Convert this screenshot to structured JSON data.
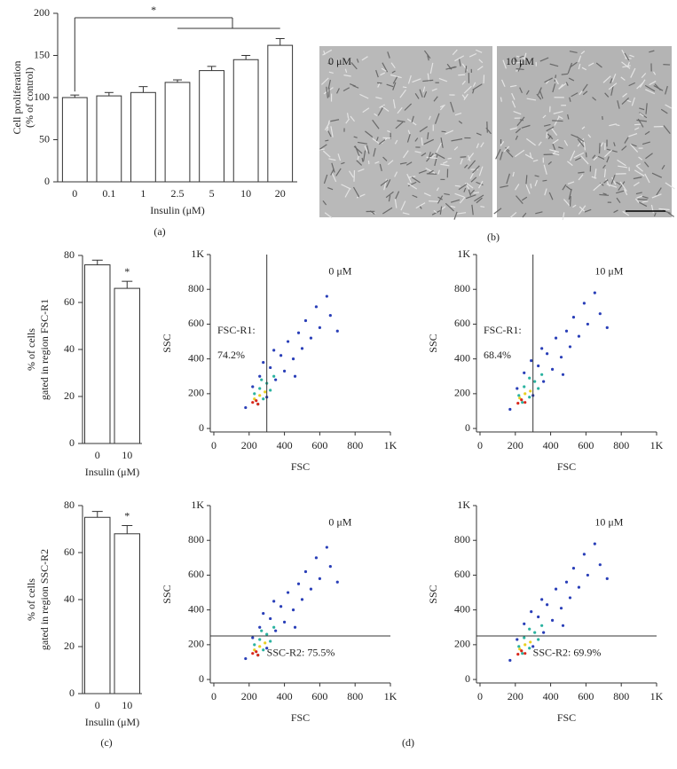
{
  "chart_data": [
    {
      "type": "bar",
      "panel_label": "(a)",
      "ylabel": [
        "Cell proliferation",
        "(% of control)"
      ],
      "xlabel": "Insulin (μM)",
      "categories": [
        "0",
        "0.1",
        "1",
        "2.5",
        "5",
        "10",
        "20"
      ],
      "values": [
        100,
        102,
        106,
        118,
        132,
        145,
        162
      ],
      "errors": [
        3,
        4,
        7,
        3,
        5,
        5,
        8
      ],
      "color": "#ffffff",
      "ylim": [
        0,
        200
      ],
      "yticks": [
        0,
        50,
        100,
        150,
        200
      ],
      "annotation": "*"
    },
    {
      "type": "bar",
      "ylabel": [
        "% of cells",
        "gated in region FSC-R1"
      ],
      "xlabel": "Insulin (μM)",
      "categories": [
        "0",
        "10"
      ],
      "values": [
        76,
        66
      ],
      "errors": [
        2,
        3
      ],
      "color": "#ffffff",
      "ylim": [
        0,
        80
      ],
      "yticks": [
        0,
        20,
        40,
        60,
        80
      ],
      "annotation": "*"
    },
    {
      "type": "bar",
      "panel_label": "(c)",
      "ylabel": [
        "% of cells",
        "gated in region SSC-R2"
      ],
      "xlabel": "Insulin (μM)",
      "categories": [
        "0",
        "10"
      ],
      "values": [
        75,
        68
      ],
      "errors": [
        2.5,
        3.5
      ],
      "color": "#ffffff",
      "ylim": [
        0,
        80
      ],
      "yticks": [
        0,
        20,
        40,
        60,
        80
      ],
      "annotation": "*"
    },
    {
      "type": "scatter",
      "xlabel": "FSC",
      "ylabel": "SSC",
      "annotation": "0 μM",
      "gate": {
        "axis": "x",
        "value": 300
      },
      "gate_label": [
        "FSC-R1:",
        "74.2%"
      ],
      "xlim": [
        -20,
        1000
      ],
      "ylim": [
        -20,
        1000
      ],
      "xticks": [
        0,
        200,
        400,
        600,
        800,
        {
          "value": 1000,
          "label": "1K"
        }
      ],
      "yticks": [
        0,
        200,
        400,
        600,
        800,
        {
          "value": 1000,
          "label": "1K"
        }
      ],
      "series": [
        {
          "color": "#2a3fb8",
          "x": [
            180,
            220,
            260,
            300,
            320,
            350,
            380,
            400,
            420,
            450,
            480,
            500,
            520,
            550,
            580,
            600,
            640,
            660,
            700,
            280,
            340,
            460
          ],
          "values": [
            120,
            240,
            300,
            180,
            350,
            280,
            420,
            330,
            500,
            400,
            550,
            460,
            620,
            520,
            700,
            580,
            760,
            650,
            560,
            380,
            450,
            300
          ]
        },
        {
          "color": "#2bb3a0",
          "x": [
            230,
            260,
            280,
            300,
            320,
            250,
            340,
            270
          ],
          "values": [
            200,
            230,
            170,
            260,
            220,
            140,
            300,
            280
          ]
        },
        {
          "color": "#e8d020",
          "x": [
            230,
            260,
            290
          ],
          "values": [
            170,
            190,
            210
          ]
        },
        {
          "color": "#d8281c",
          "x": [
            220,
            240,
            250
          ],
          "values": [
            150,
            160,
            140
          ]
        }
      ]
    },
    {
      "type": "scatter",
      "xlabel": "FSC",
      "ylabel": "SSC",
      "annotation": "10 μM",
      "gate": {
        "axis": "x",
        "value": 300
      },
      "gate_label": [
        "FSC-R1:",
        "68.4%"
      ],
      "xlim": [
        -20,
        1000
      ],
      "ylim": [
        -20,
        1000
      ],
      "xticks": [
        0,
        200,
        400,
        600,
        800,
        {
          "value": 1000,
          "label": "1K"
        }
      ],
      "yticks": [
        0,
        200,
        400,
        600,
        800,
        {
          "value": 1000,
          "label": "1K"
        }
      ],
      "series": [
        {
          "color": "#2a3fb8",
          "x": [
            170,
            210,
            250,
            300,
            330,
            360,
            380,
            410,
            430,
            460,
            490,
            510,
            530,
            560,
            590,
            610,
            650,
            680,
            720,
            290,
            350,
            470
          ],
          "values": [
            110,
            230,
            320,
            190,
            360,
            270,
            430,
            340,
            520,
            410,
            560,
            470,
            640,
            530,
            720,
            600,
            780,
            660,
            580,
            390,
            460,
            310
          ]
        },
        {
          "color": "#2bb3a0",
          "x": [
            220,
            250,
            280,
            310,
            330,
            240,
            350,
            280
          ],
          "values": [
            190,
            240,
            180,
            270,
            230,
            150,
            310,
            290
          ]
        },
        {
          "color": "#e8d020",
          "x": [
            225,
            255,
            285
          ],
          "values": [
            175,
            200,
            215
          ]
        },
        {
          "color": "#d8281c",
          "x": [
            215,
            235,
            255
          ],
          "values": [
            145,
            165,
            150
          ]
        }
      ]
    },
    {
      "type": "scatter",
      "panel_label": "(d)",
      "xlabel": "FSC",
      "ylabel": "SSC",
      "annotation": "0 μM",
      "gate": {
        "axis": "y",
        "value": 250
      },
      "gate_label": [
        "SSC-R2: 75.5%"
      ],
      "xlim": [
        -20,
        1000
      ],
      "ylim": [
        -20,
        1000
      ],
      "xticks": [
        0,
        200,
        400,
        600,
        800,
        {
          "value": 1000,
          "label": "1K"
        }
      ],
      "yticks": [
        0,
        200,
        400,
        600,
        800,
        {
          "value": 1000,
          "label": "1K"
        }
      ],
      "series": [
        {
          "color": "#2a3fb8",
          "x": [
            180,
            220,
            260,
            300,
            320,
            350,
            380,
            400,
            420,
            450,
            480,
            500,
            520,
            550,
            580,
            600,
            640,
            660,
            700,
            280,
            340,
            460
          ],
          "values": [
            120,
            240,
            300,
            180,
            350,
            280,
            420,
            330,
            500,
            400,
            550,
            460,
            620,
            520,
            700,
            580,
            760,
            650,
            560,
            380,
            450,
            300
          ]
        },
        {
          "color": "#2bb3a0",
          "x": [
            230,
            260,
            280,
            300,
            320,
            250,
            340,
            270
          ],
          "values": [
            200,
            230,
            170,
            260,
            220,
            140,
            300,
            280
          ]
        },
        {
          "color": "#e8d020",
          "x": [
            230,
            260,
            290
          ],
          "values": [
            170,
            190,
            210
          ]
        },
        {
          "color": "#d8281c",
          "x": [
            220,
            240,
            250
          ],
          "values": [
            150,
            160,
            140
          ]
        }
      ]
    },
    {
      "type": "scatter",
      "xlabel": "FSC",
      "ylabel": "SSC",
      "annotation": "10 μM",
      "gate": {
        "axis": "y",
        "value": 250
      },
      "gate_label": [
        "SSC-R2: 69.9%"
      ],
      "xlim": [
        -20,
        1000
      ],
      "ylim": [
        -20,
        1000
      ],
      "xticks": [
        0,
        200,
        400,
        600,
        800,
        {
          "value": 1000,
          "label": "1K"
        }
      ],
      "yticks": [
        0,
        200,
        400,
        600,
        800,
        {
          "value": 1000,
          "label": "1K"
        }
      ],
      "series": [
        {
          "color": "#2a3fb8",
          "x": [
            170,
            210,
            250,
            300,
            330,
            360,
            380,
            410,
            430,
            460,
            490,
            510,
            530,
            560,
            590,
            610,
            650,
            680,
            720,
            290,
            350,
            470
          ],
          "values": [
            110,
            230,
            320,
            190,
            360,
            270,
            430,
            340,
            520,
            410,
            560,
            470,
            640,
            530,
            720,
            600,
            780,
            660,
            580,
            390,
            460,
            310
          ]
        },
        {
          "color": "#2bb3a0",
          "x": [
            220,
            250,
            280,
            310,
            330,
            240,
            350,
            280
          ],
          "values": [
            190,
            240,
            180,
            270,
            230,
            150,
            310,
            290
          ]
        },
        {
          "color": "#e8d020",
          "x": [
            225,
            255,
            285
          ],
          "values": [
            175,
            200,
            215
          ]
        },
        {
          "color": "#d8281c",
          "x": [
            215,
            235,
            255
          ],
          "values": [
            145,
            165,
            150
          ]
        }
      ]
    }
  ],
  "images": {
    "panel_label": "(b)",
    "labels": [
      "0 μM",
      "10 μM"
    ]
  }
}
